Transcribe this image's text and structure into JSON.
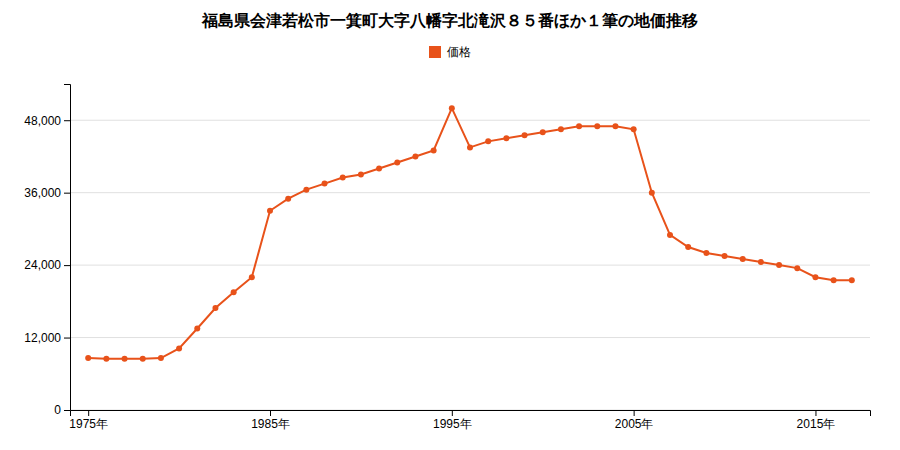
{
  "chart_data": {
    "type": "line",
    "title": "福島県会津若松市一箕町大字八幡字北滝沢８５番ほか１筆の地価推移",
    "x": [
      1975,
      1976,
      1977,
      1978,
      1979,
      1980,
      1981,
      1982,
      1983,
      1984,
      1985,
      1986,
      1987,
      1988,
      1989,
      1990,
      1991,
      1992,
      1993,
      1994,
      1995,
      1996,
      1997,
      1998,
      1999,
      2000,
      2001,
      2002,
      2003,
      2004,
      2005,
      2006,
      2007,
      2008,
      2009,
      2010,
      2011,
      2012,
      2013,
      2014,
      2015,
      2016,
      2017
    ],
    "series": [
      {
        "name": "価格",
        "color": "#e8521a",
        "marker": "circle",
        "values": [
          8600,
          8500,
          8500,
          8500,
          8600,
          10200,
          13500,
          16900,
          19500,
          22000,
          33000,
          35000,
          36500,
          37500,
          38500,
          39000,
          40000,
          41000,
          42000,
          43000,
          50000,
          43500,
          44500,
          45000,
          45500,
          46000,
          46500,
          47000,
          47000,
          47000,
          46500,
          36000,
          29000,
          27000,
          26000,
          25500,
          25000,
          24500,
          24000,
          23500,
          22000,
          21500,
          21500
        ]
      }
    ],
    "xlim": [
      1974,
      2018
    ],
    "xticks": [
      {
        "value": 1975,
        "label": "1975年"
      },
      {
        "value": 1985,
        "label": "1985年"
      },
      {
        "value": 1995,
        "label": "1995年"
      },
      {
        "value": 2005,
        "label": "2005年"
      },
      {
        "value": 2015,
        "label": "2015年"
      }
    ],
    "ylim": [
      0,
      54000
    ],
    "yticks": [
      0,
      {
        "value": 12000,
        "label": "12,000"
      },
      {
        "value": 24000,
        "label": "24,000"
      },
      {
        "value": 36000,
        "label": "36,000"
      },
      {
        "value": 48000,
        "label": "48,000"
      }
    ],
    "grid": true,
    "legend": "top"
  }
}
